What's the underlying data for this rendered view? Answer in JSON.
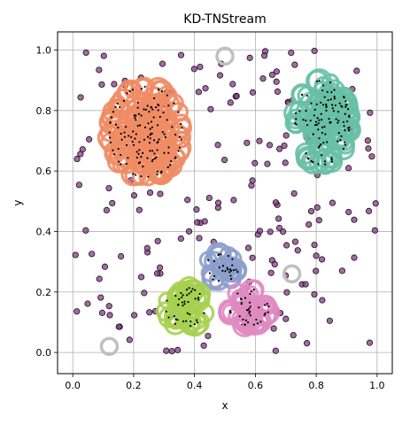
{
  "chart_data": {
    "type": "scatter",
    "title": "KD-TNStream",
    "xlabel": "x",
    "ylabel": "y",
    "xlim": [
      -0.05,
      1.05
    ],
    "ylim": [
      -0.07,
      1.06
    ],
    "xticks": [
      "0.0",
      "0.2",
      "0.4",
      "0.6",
      "0.8",
      "1.0"
    ],
    "yticks": [
      "0.0",
      "0.2",
      "0.4",
      "0.6",
      "0.8",
      "1.0"
    ],
    "grid": true,
    "clusters": [
      {
        "center": [
          0.24,
          0.73
        ],
        "spread": [
          0.12,
          0.15
        ],
        "count": 140,
        "color": "#f08c64"
      },
      {
        "center": [
          0.82,
          0.76
        ],
        "spread": [
          0.09,
          0.14
        ],
        "count": 110,
        "color": "#68c0a4"
      },
      {
        "center": [
          0.49,
          0.28
        ],
        "spread": [
          0.055,
          0.045
        ],
        "count": 26,
        "color": "#8c9fcb"
      },
      {
        "center": [
          0.37,
          0.15
        ],
        "spread": [
          0.065,
          0.065
        ],
        "count": 40,
        "color": "#a6d050"
      },
      {
        "center": [
          0.58,
          0.15
        ],
        "spread": [
          0.065,
          0.06
        ],
        "count": 38,
        "color": "#e08ac2"
      }
    ],
    "outlier_microclusters": [
      {
        "x": 0.12,
        "y": 0.02
      },
      {
        "x": 0.5,
        "y": 0.98
      },
      {
        "x": 0.72,
        "y": 0.26
      }
    ],
    "noise": {
      "count": 190,
      "color": "#7b3f7b",
      "edge": "#2a0a2a"
    }
  }
}
